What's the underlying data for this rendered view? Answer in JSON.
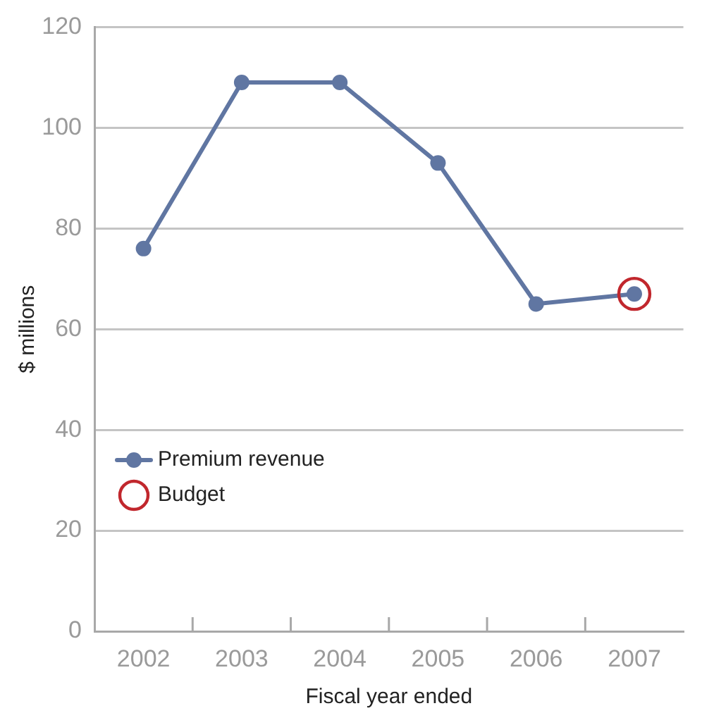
{
  "chart_data": {
    "type": "line",
    "xlabel": "Fiscal year ended",
    "ylabel": "$ millions",
    "categories": [
      "2002",
      "2003",
      "2004",
      "2005",
      "2006",
      "2007"
    ],
    "series": [
      {
        "name": "Premium revenue",
        "color": "#6076a2",
        "values": [
          76,
          109,
          109,
          93,
          65,
          67
        ]
      },
      {
        "name": "Budget",
        "type": "scatter",
        "color": "#c1272d",
        "values": [
          null,
          null,
          null,
          null,
          null,
          67
        ]
      }
    ],
    "ylim": [
      0,
      120
    ],
    "yticks": [
      0,
      20,
      40,
      60,
      80,
      100,
      120
    ],
    "grid": "y",
    "legend": "bottom left",
    "marker": "circle"
  }
}
